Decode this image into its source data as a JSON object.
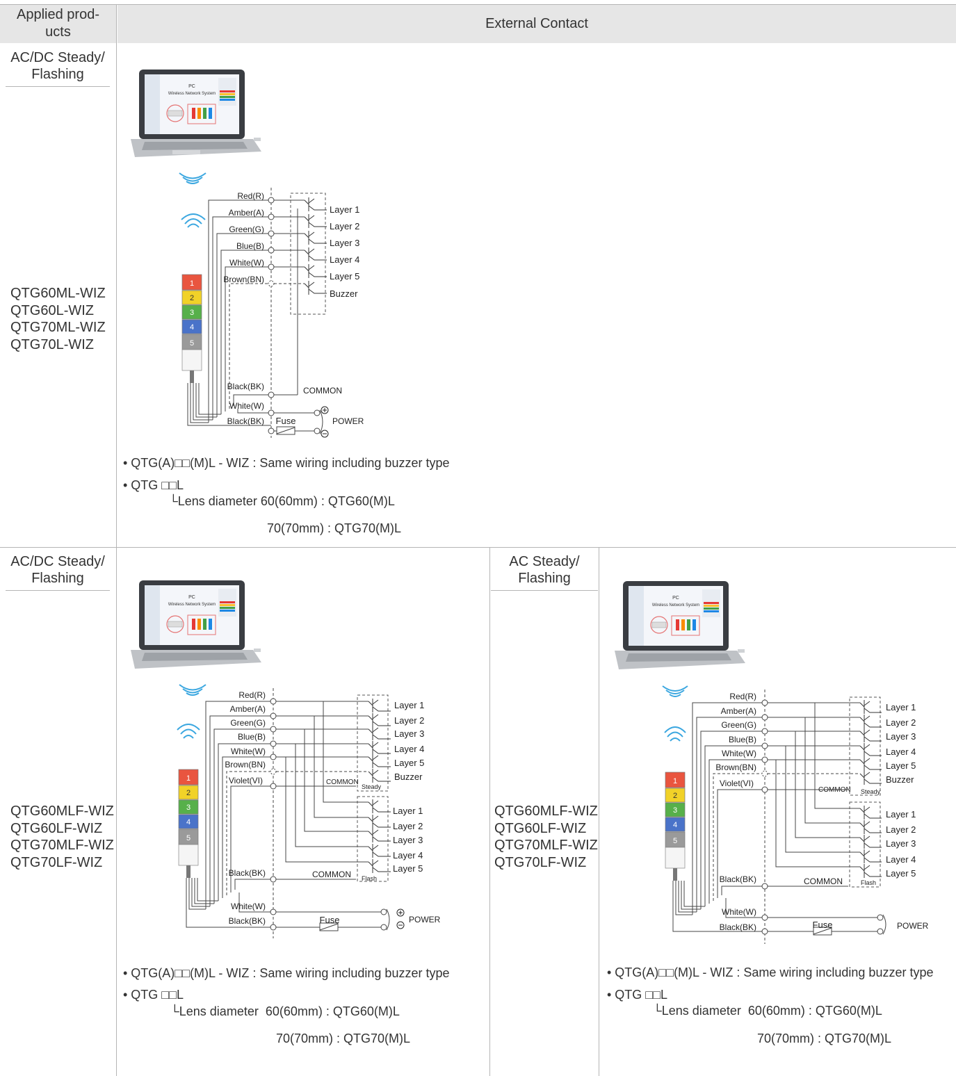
{
  "header": {
    "col1": "Applied prod-ucts",
    "col2": "External Contact"
  },
  "section1": {
    "mode": "AC/DC Steady/ Flashing",
    "products": [
      "QTG60ML-WIZ",
      "QTG60L-WIZ",
      "QTG70ML-WIZ",
      "QTG70L-WIZ"
    ],
    "diagram": {
      "pc_title": "PC",
      "pc_subtitle": "Wireless Network System",
      "wires": [
        "Red(R)",
        "Amber(A)",
        "Green(G)",
        "Blue(B)",
        "White(W)",
        "Brown(BN)"
      ],
      "outputs": [
        "Layer 1",
        "Layer 2",
        "Layer 3",
        "Layer 4",
        "Layer 5",
        "Buzzer"
      ],
      "common_wire": "Black(BK)",
      "common_label": "COMMON",
      "power_wires": [
        "White(W)",
        "Black(BK)"
      ],
      "fuse_label": "Fuse",
      "power_label": "POWER",
      "tower_numbers": [
        "1",
        "2",
        "3",
        "4",
        "5"
      ]
    },
    "notes": {
      "line1": "• QTG(A)□□(M)L - WIZ : Same wiring including buzzer type",
      "line2": "• QTG □□L",
      "line3_prefix": "Lens diameter ",
      "line3_value": "60(60mm) : QTG60(M)L",
      "line4_value": "70(70mm) : QTG70(M)L"
    }
  },
  "section2": {
    "mode": "AC/DC Steady/ Flashing",
    "products": [
      "QTG60MLF-WIZ",
      "QTG60LF-WIZ",
      "QTG70MLF-WIZ",
      "QTG70LF-WIZ"
    ],
    "diagram": {
      "pc_title": "PC",
      "pc_subtitle": "Wireless Network System",
      "wires": [
        "Red(R)",
        "Amber(A)",
        "Green(G)",
        "Blue(B)",
        "White(W)",
        "Brown(BN)",
        "Violet(VI)"
      ],
      "outputs_steady": [
        "Layer 1",
        "Layer 2",
        "Layer 3",
        "Layer 4",
        "Layer 5",
        "Buzzer"
      ],
      "steady_label": "Steady",
      "outputs_flash": [
        "Layer 1",
        "Layer 2",
        "Layer 3",
        "Layer 4",
        "Layer 5"
      ],
      "flash_label": "Flash",
      "common_wire": "Black(BK)",
      "common_label": "COMMON",
      "power_wires": [
        "White(W)",
        "Black(BK)"
      ],
      "fuse_label": "Fuse",
      "power_label": "POWER",
      "tower_numbers": [
        "1",
        "2",
        "3",
        "4",
        "5"
      ]
    },
    "notes": {
      "line1": "• QTG(A)□□(M)L - WIZ : Same wiring including buzzer type",
      "line2": "• QTG □□L",
      "line3_prefix": "Lens diameter  ",
      "line3_value": "60(60mm) : QTG60(M)L",
      "line4_value": "70(70mm) : QTG70(M)L"
    }
  },
  "section3": {
    "mode": "AC Steady/ Flashing",
    "products": [
      "QTG60MLF-WIZ",
      "QTG60LF-WIZ",
      "QTG70MLF-WIZ",
      "QTG70LF-WIZ"
    ],
    "diagram": {
      "pc_title": "PC",
      "pc_subtitle": "Wireless Network System",
      "wires": [
        "Red(R)",
        "Amber(A)",
        "Green(G)",
        "Blue(B)",
        "White(W)",
        "Brown(BN)",
        "Violet(VI)"
      ],
      "outputs_steady": [
        "Layer 1",
        "Layer 2",
        "Layer 3",
        "Layer 4",
        "Layer 5",
        "Buzzer"
      ],
      "steady_label": "Steady",
      "outputs_flash": [
        "Layer 1",
        "Layer 2",
        "Layer 3",
        "Layer 4",
        "Layer 5"
      ],
      "flash_label": "Flash",
      "common_wire": "Black(BK)",
      "common_label": "COMMON",
      "power_wires": [
        "White(W)",
        "Black(BK)"
      ],
      "fuse_label": "Fuse",
      "power_label": "POWER",
      "tower_numbers": [
        "1",
        "2",
        "3",
        "4",
        "5"
      ]
    },
    "notes": {
      "line1": "• QTG(A)□□(M)L - WIZ : Same wiring including buzzer type",
      "line2": "• QTG □□L",
      "line3_prefix": "Lens diameter  ",
      "line3_value": "60(60mm) : QTG60(M)L",
      "line4_value": "70(70mm) : QTG70(M)L"
    }
  }
}
